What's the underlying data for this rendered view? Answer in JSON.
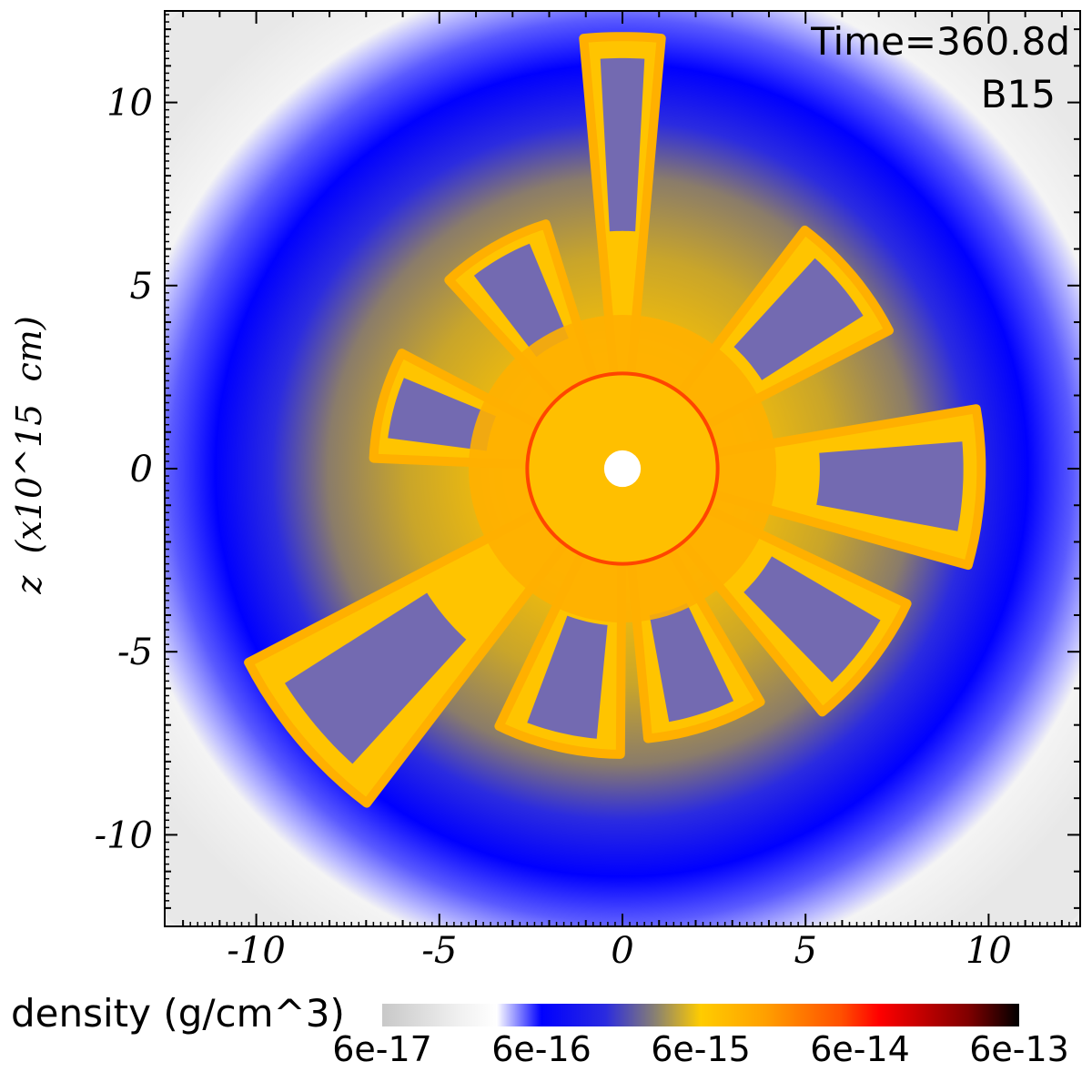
{
  "chart_data": {
    "type": "heatmap",
    "title": "",
    "annotations": {
      "time": "Time=360.8d",
      "model": "B15"
    },
    "xlabel": "",
    "ylabel": "z  (x10^15  cm)",
    "xlim": [
      -12.5,
      12.5
    ],
    "ylim": [
      -12.5,
      12.5
    ],
    "x_ticks": [
      -10,
      -5,
      0,
      5,
      10
    ],
    "y_ticks": [
      10,
      5,
      0,
      -5,
      -10
    ],
    "x_tick_labels": [
      "-10",
      "-5",
      "0",
      "5",
      "10"
    ],
    "y_tick_labels": [
      "10",
      "5",
      "0",
      "-5",
      "-10"
    ],
    "colorbar": {
      "label": "density (g/cm^3)",
      "scale": "log",
      "range": [
        6e-17,
        6e-13
      ],
      "tick_labels": [
        "6e-17",
        "6e-16",
        "6e-15",
        "6e-14",
        "6e-13"
      ],
      "stops": [
        {
          "value": 6e-17,
          "color": "#c8c8c8"
        },
        {
          "value": 1.5e-16,
          "color": "#ffffff"
        },
        {
          "value": 6e-16,
          "color": "#0000ff"
        },
        {
          "value": 3e-15,
          "color": "#a8983a"
        },
        {
          "value": 6e-15,
          "color": "#ffcc00"
        },
        {
          "value": 2e-14,
          "color": "#ff8000"
        },
        {
          "value": 6e-14,
          "color": "#ff0000"
        },
        {
          "value": 6e-13,
          "color": "#000000"
        }
      ]
    },
    "structure": {
      "blue_shell_radius": 10.5,
      "outer_edge_radius": 12.4,
      "central_sphere_radius": 0.5,
      "plumes": [
        {
          "angle_deg": 90,
          "extent": 11.8
        },
        {
          "angle_deg": 120,
          "extent": 7.0
        },
        {
          "angle_deg": 40,
          "extent": 8.2
        },
        {
          "angle_deg": -3,
          "extent": 9.8
        },
        {
          "angle_deg": -38,
          "extent": 8.6
        },
        {
          "angle_deg": -72,
          "extent": 7.4
        },
        {
          "angle_deg": -103,
          "extent": 7.8
        },
        {
          "angle_deg": -140,
          "extent": 11.5
        },
        {
          "angle_deg": 165,
          "extent": 6.8
        }
      ]
    }
  }
}
